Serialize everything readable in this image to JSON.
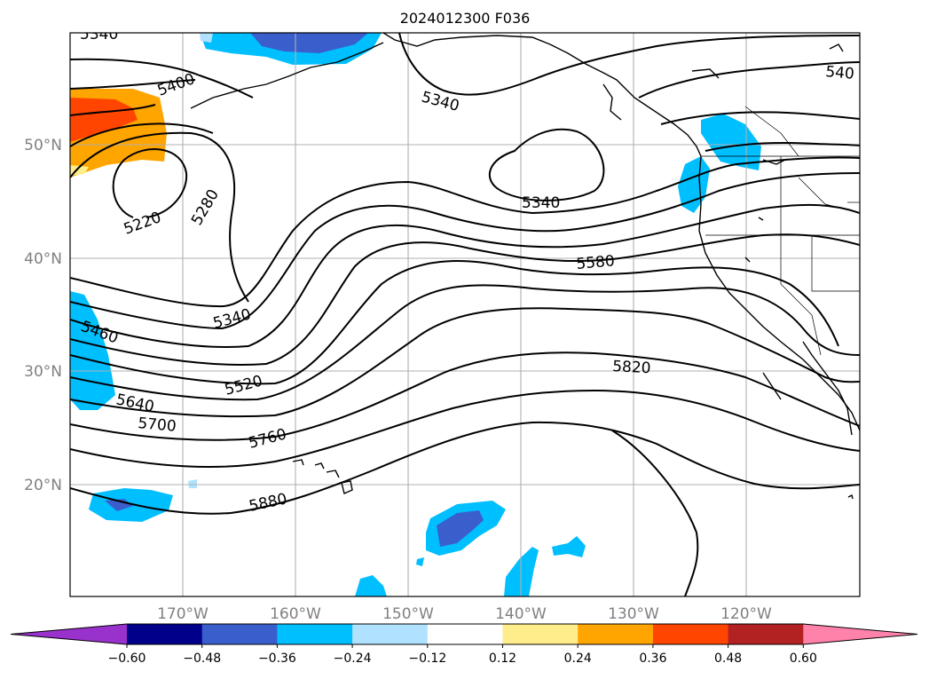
{
  "title": "2024012300 F036",
  "latitude_labels": [
    "50°N",
    "40°N",
    "30°N",
    "20°N"
  ],
  "longitude_labels": [
    "170°W",
    "160°W",
    "150°W",
    "140°W",
    "130°W",
    "120°W"
  ],
  "contour_labels": [
    "5340",
    "5400",
    "5220",
    "5280",
    "5340",
    "5340",
    "540",
    "5580",
    "5340",
    "5460",
    "5520",
    "5640",
    "5700",
    "5760",
    "5820",
    "5880"
  ],
  "colorbar": {
    "ticks": [
      "−0.60",
      "−0.48",
      "−0.36",
      "−0.24",
      "−0.12",
      "0.12",
      "0.24",
      "0.36",
      "0.48",
      "0.60"
    ],
    "colors": [
      "#9932cc",
      "#00008b",
      "#3a5fcd",
      "#00bfff",
      "#b0e2ff",
      "#ffffff",
      "#ffec8b",
      "#ffa500",
      "#ff4500",
      "#b22222",
      "#ff82ab"
    ]
  }
}
